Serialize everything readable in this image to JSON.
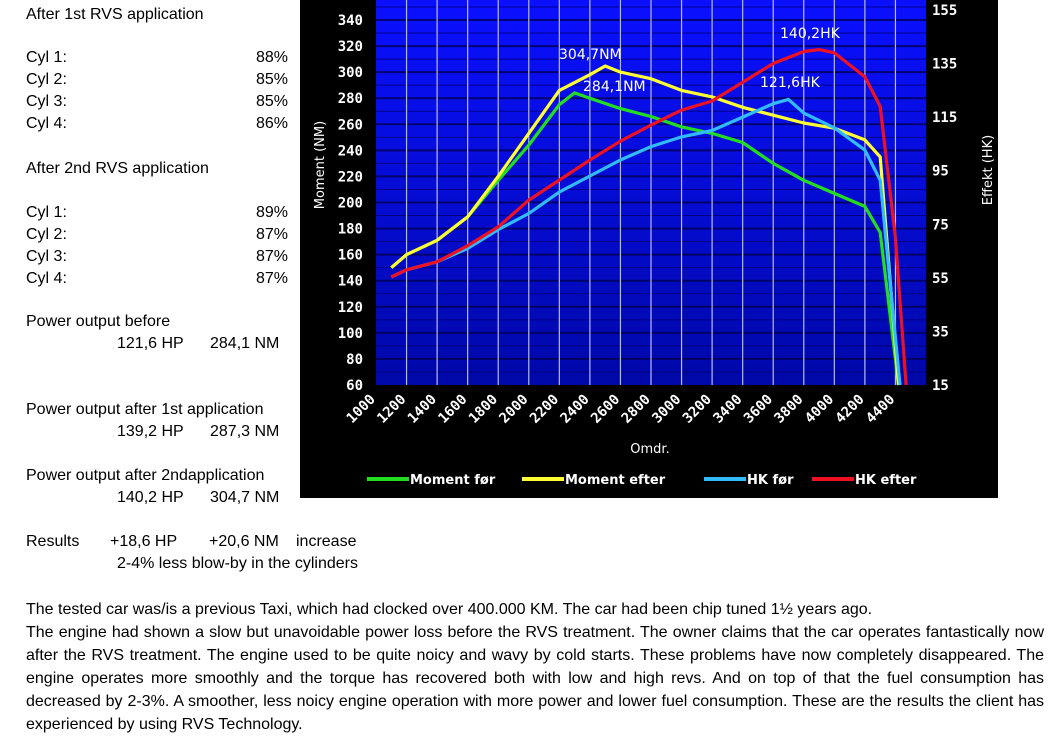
{
  "left_column": {
    "first_heading": "After 1st RVS application",
    "first": [
      {
        "label": "Cyl 1:",
        "value": "88%"
      },
      {
        "label": "Cyl 2:",
        "value": "85%"
      },
      {
        "label": "Cyl 3:",
        "value": "85%"
      },
      {
        "label": "Cyl 4:",
        "value": "86%"
      }
    ],
    "second_heading": "After 2nd RVS application",
    "second": [
      {
        "label": "Cyl 1:",
        "value": "89%"
      },
      {
        "label": "Cyl 2:",
        "value": "87%"
      },
      {
        "label": "Cyl 3:",
        "value": "87%"
      },
      {
        "label": "Cyl 4:",
        "value": "87%"
      }
    ],
    "power_before": {
      "label": "Power output before",
      "hp": "121,6 HP",
      "nm": "284,1 NM"
    },
    "power_after_1": {
      "label": "Power output after 1st application",
      "hp": "139,2 HP",
      "nm": "287,3 NM"
    },
    "power_after_2": {
      "label": "Power output after 2ndapplication",
      "hp": "140,2 HP",
      "nm": "304,7 NM"
    },
    "results": {
      "label": "Results",
      "hp": "+18,6 HP",
      "nm": "+20,6 NM",
      "suffix": "increase",
      "note": "2-4% less blow-by in the cylinders"
    }
  },
  "paragraph": [
    "The tested car was/is a previous Taxi, which had clocked over 400.000 KM. The car had been chip tuned 1½  years ago.",
    "The engine had shown a slow but unavoidable power loss before the RVS treatment. The owner claims that the car operates fantastically now after the RVS treatment. The engine used to be quite noicy and wavy by cold starts. These problems have now completely disappeared. The engine operates more smoothly and the torque has recovered both with low and high revs. And on top of that the fuel consumption has decreased by 2-3%.  A  smoother, less  noicy engine operation with more power and lower fuel consumption. These are the results the client has experienced by using RVS Technology."
  ],
  "chart_data": {
    "type": "line",
    "xlabel": "Omdr.",
    "ylabel": "Moment (NM)",
    "y2label": "Effekt (HK)",
    "xlim": [
      1000,
      4600
    ],
    "ylim": [
      60,
      355
    ],
    "y2lim": [
      15,
      155
    ],
    "x_ticks": [
      1000,
      1200,
      1400,
      1600,
      1800,
      2000,
      2200,
      2400,
      2600,
      2800,
      3000,
      3200,
      3400,
      3600,
      3800,
      4000,
      4200,
      4400
    ],
    "y_ticks": [
      60,
      80,
      100,
      120,
      140,
      160,
      180,
      200,
      220,
      240,
      260,
      280,
      300,
      320,
      340
    ],
    "y2_ticks": [
      15,
      35,
      55,
      75,
      95,
      115,
      135,
      155
    ],
    "legend_position": "bottom",
    "series": [
      {
        "name": "Moment før",
        "axis": "left",
        "color": "#22dd22",
        "x": [
          1100,
          1200,
          1400,
          1600,
          1800,
          2000,
          2200,
          2300,
          2400,
          2600,
          2800,
          3000,
          3200,
          3400,
          3600,
          3800,
          4000,
          4200,
          4300,
          4420
        ],
        "y": [
          150,
          160,
          171,
          189,
          217,
          244,
          275,
          284.1,
          280,
          272,
          266,
          258,
          253,
          246,
          230,
          217,
          207,
          197,
          177,
          60
        ]
      },
      {
        "name": "Moment efter",
        "axis": "left",
        "color": "#ffff33",
        "x": [
          1100,
          1200,
          1400,
          1600,
          1800,
          2000,
          2200,
          2400,
          2500,
          2600,
          2800,
          3000,
          3200,
          3400,
          3600,
          3800,
          4000,
          4200,
          4300,
          4420
        ],
        "y": [
          150,
          160,
          171,
          189,
          220,
          253,
          286,
          298,
          304.7,
          300,
          295,
          286,
          281,
          273,
          267,
          261,
          257,
          248,
          235,
          60
        ]
      },
      {
        "name": "HK før",
        "axis": "right",
        "color": "#33bbff",
        "x": [
          1100,
          1200,
          1400,
          1600,
          1800,
          2000,
          2200,
          2400,
          2600,
          2800,
          3000,
          3200,
          3400,
          3600,
          3700,
          3800,
          4000,
          4200,
          4300,
          4430
        ],
        "y": [
          55.3,
          58,
          61,
          66,
          73,
          79,
          87,
          93,
          99,
          104,
          107.6,
          110,
          115,
          120,
          121.6,
          116.5,
          111,
          102.7,
          91.5,
          15
        ]
      },
      {
        "name": "HK efter",
        "axis": "right",
        "color": "#ee1122",
        "x": [
          1100,
          1200,
          1400,
          1600,
          1800,
          2000,
          2200,
          2400,
          2600,
          2800,
          3000,
          3200,
          3400,
          3600,
          3800,
          3900,
          4000,
          4200,
          4300,
          4400,
          4470
        ],
        "y": [
          55.3,
          58,
          61,
          67,
          74,
          84,
          91.5,
          99,
          106,
          112,
          117.6,
          121,
          128,
          135,
          139.5,
          140.2,
          139,
          130,
          119,
          70,
          15
        ]
      }
    ],
    "annotations": [
      "304,7NM",
      "284,1NM",
      "140,2HK",
      "121,6HK"
    ]
  }
}
